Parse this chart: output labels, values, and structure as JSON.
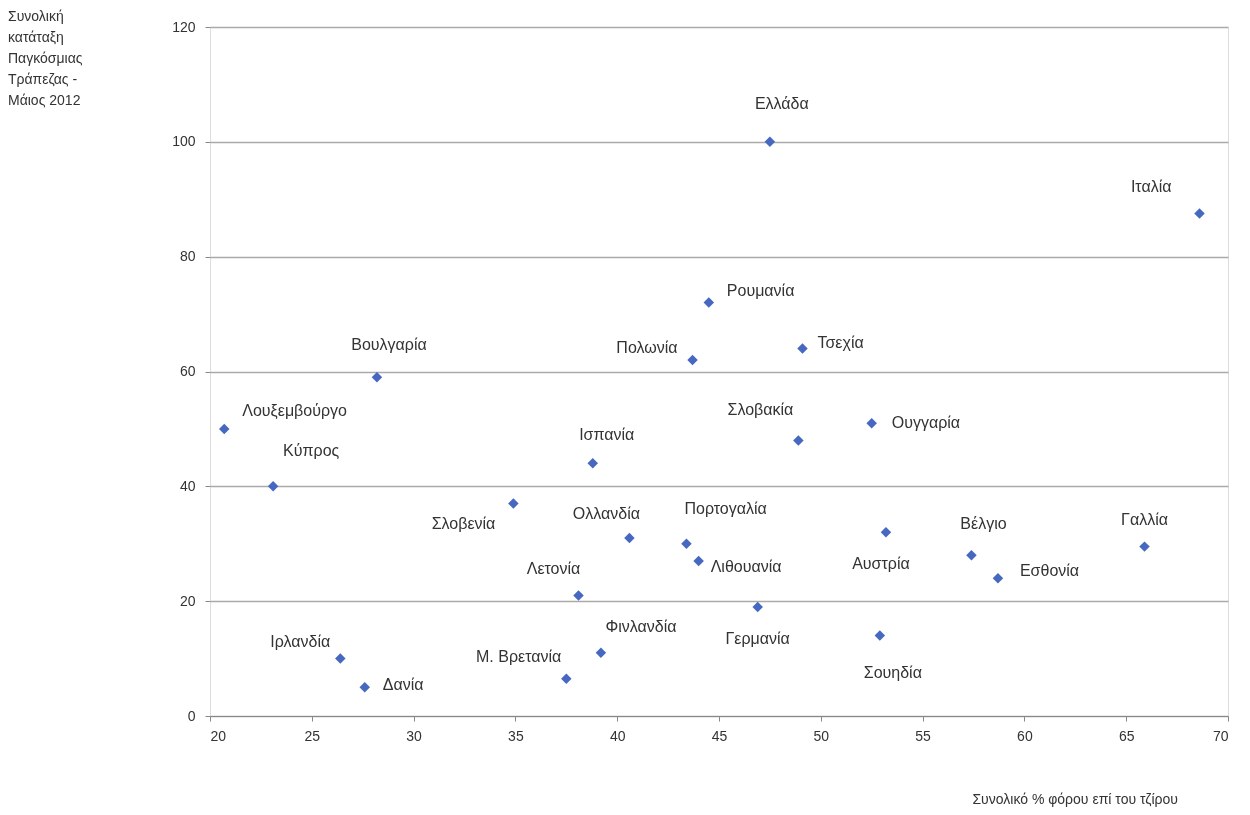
{
  "chart_data": {
    "type": "scatter",
    "xlabel": "Συνολικό % φόρου επί του τζίρου",
    "xlim": [
      20,
      70
    ],
    "xticks": [
      20,
      25,
      30,
      35,
      40,
      45,
      50,
      55,
      60,
      65,
      70
    ],
    "ylim": [
      0,
      120
    ],
    "yticks": [
      0,
      20,
      40,
      60,
      80,
      100,
      120
    ],
    "grid": "y",
    "marker": "diamond",
    "series": [
      {
        "color": "#4668c0",
        "x": [
          47.5,
          68.6,
          44.5,
          43.7,
          49.1,
          28.2,
          20.7,
          48.9,
          52.5,
          38.8,
          23.1,
          34.9,
          40.6,
          43.4,
          44.0,
          53.2,
          57.4,
          58.7,
          65.9,
          38.1,
          46.9,
          39.2,
          52.9,
          26.4,
          27.6,
          37.5
        ],
        "values": [
          100,
          87.5,
          72,
          62,
          64,
          59,
          50,
          48,
          51,
          44,
          40,
          37,
          31,
          30,
          27,
          32,
          28,
          24,
          29.5,
          21,
          19,
          11,
          14,
          10,
          5,
          6.5
        ]
      }
    ],
    "annotations": [
      "Συνολική\nκατάταξη\nΠαγκόσμιας\nΤράπεζας -\nΜάιος 2012",
      {
        "text": "Ελλάδα",
        "x": 47.5,
        "y": 100
      },
      {
        "text": "Ιταλία",
        "x": 68.6,
        "y": 87.5
      },
      {
        "text": "Ρουμανία",
        "x": 44.5,
        "y": 72
      },
      {
        "text": "Πολωνία",
        "x": 43.7,
        "y": 62
      },
      {
        "text": "Τσεχία",
        "x": 49.1,
        "y": 64
      },
      {
        "text": "Βουλγαρία",
        "x": 28.2,
        "y": 59
      },
      {
        "text": "Λουξεμβούργο",
        "x": 20.7,
        "y": 50
      },
      {
        "text": "Σλοβακία",
        "x": 48.9,
        "y": 48
      },
      {
        "text": "Ουγγαρία",
        "x": 52.5,
        "y": 51
      },
      {
        "text": "Ισπανία",
        "x": 38.8,
        "y": 44
      },
      {
        "text": "Κύπρος",
        "x": 23.1,
        "y": 40
      },
      {
        "text": "Σλοβενία",
        "x": 34.9,
        "y": 37
      },
      {
        "text": "Ολλανδία",
        "x": 40.6,
        "y": 31
      },
      {
        "text": "Πορτογαλία",
        "x": 43.4,
        "y": 30
      },
      {
        "text": "Λιθουανία",
        "x": 44.0,
        "y": 27
      },
      {
        "text": "Αυστρία",
        "x": 53.2,
        "y": 32
      },
      {
        "text": "Βέλγιο",
        "x": 57.4,
        "y": 28
      },
      {
        "text": "Εσθονία",
        "x": 58.7,
        "y": 24
      },
      {
        "text": "Γαλλία",
        "x": 65.9,
        "y": 29.5
      },
      {
        "text": "Λετονία",
        "x": 38.1,
        "y": 21
      },
      {
        "text": "Γερμανία",
        "x": 46.9,
        "y": 19
      },
      {
        "text": "Φινλανδία",
        "x": 39.2,
        "y": 11
      },
      {
        "text": "Σουηδία",
        "x": 52.9,
        "y": 14
      },
      {
        "text": "Ιρλανδία",
        "x": 26.4,
        "y": 10
      },
      {
        "text": "Δανία",
        "x": 27.6,
        "y": 5
      },
      {
        "text": "Μ. Βρετανία",
        "x": 37.5,
        "y": 6.5
      }
    ]
  }
}
